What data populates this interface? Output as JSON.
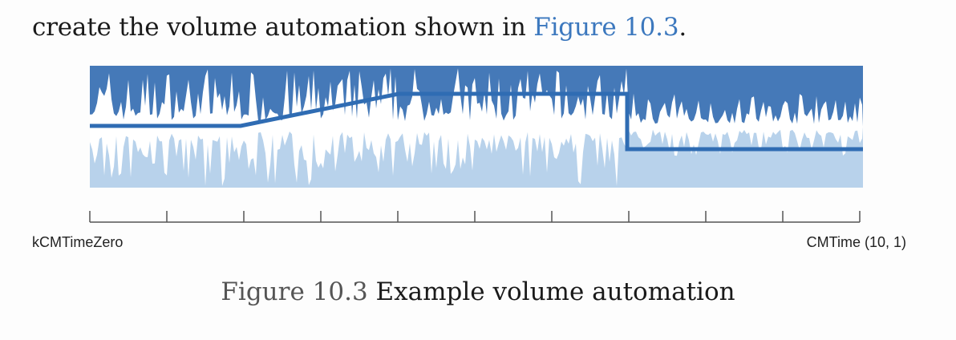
{
  "intro": {
    "text_before": "create the volume automation shown in ",
    "link": "Figure 10.3",
    "text_after": "."
  },
  "figure": {
    "colors": {
      "top": "#4579b8",
      "bottom": "#b8d2eb",
      "wave": "#ffffff",
      "line": "#2f6cb3",
      "ticks": "#555555"
    },
    "timeline": {
      "start_label": "kCMTimeZero",
      "end_label": "CMTime (10, 1)",
      "ticks": 11
    },
    "caption": {
      "number": "Figure 10.3",
      "title": "Example volume automation"
    }
  }
}
